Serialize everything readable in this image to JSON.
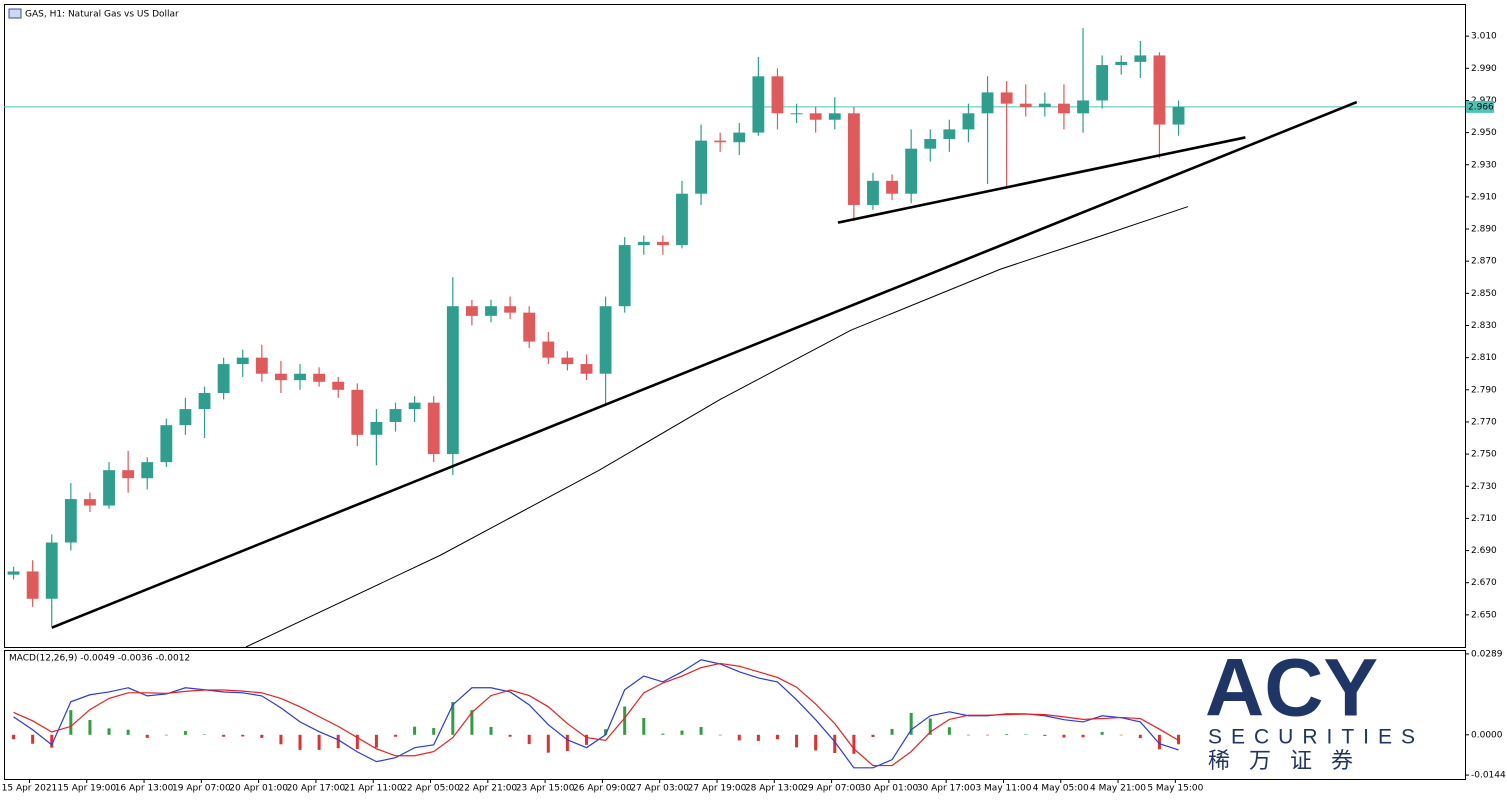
{
  "chart_data": {
    "type": "candlestick",
    "title": "GAS, H1: Natural Gas vs US Dollar",
    "up_color": "#2f9e8f",
    "down_color": "#e0595b",
    "x": [
      3,
      9,
      15,
      21,
      27,
      33,
      39,
      45,
      51,
      57,
      63,
      69,
      75,
      81,
      87,
      93,
      99,
      105,
      111,
      117,
      123,
      129,
      135,
      141,
      147,
      153,
      159,
      165,
      171,
      177,
      183,
      189,
      195,
      201,
      207,
      213,
      219,
      225,
      231,
      237,
      243,
      249,
      255,
      261,
      267,
      273,
      279,
      285,
      291,
      297,
      303,
      309,
      315,
      321,
      327,
      333,
      339,
      345,
      351,
      357,
      363,
      369
    ],
    "open": [
      2.675,
      2.677,
      2.66,
      2.695,
      2.722,
      2.718,
      2.74,
      2.735,
      2.745,
      2.768,
      2.778,
      2.788,
      2.806,
      2.81,
      2.8,
      2.796,
      2.8,
      2.795,
      2.79,
      2.762,
      2.77,
      2.778,
      2.782,
      2.75,
      2.842,
      2.836,
      2.842,
      2.838,
      2.82,
      2.81,
      2.806,
      2.8,
      2.842,
      2.88,
      2.882,
      2.88,
      2.912,
      2.945,
      2.944,
      2.95,
      2.985,
      2.962,
      2.962,
      2.958,
      2.962,
      2.905,
      2.92,
      2.912,
      2.94,
      2.946,
      2.952,
      2.962,
      2.975,
      2.968,
      2.966,
      2.968,
      2.962,
      2.97,
      2.992,
      2.994,
      2.998,
      2.955
    ],
    "high": [
      2.68,
      2.684,
      2.7,
      2.732,
      2.726,
      2.745,
      2.752,
      2.748,
      2.772,
      2.785,
      2.792,
      2.81,
      2.815,
      2.818,
      2.808,
      2.806,
      2.804,
      2.798,
      2.794,
      2.778,
      2.782,
      2.786,
      2.786,
      2.86,
      2.846,
      2.846,
      2.848,
      2.842,
      2.826,
      2.814,
      2.812,
      2.848,
      2.885,
      2.886,
      2.886,
      2.92,
      2.955,
      2.95,
      2.956,
      2.997,
      2.99,
      2.968,
      2.966,
      2.972,
      2.966,
      2.925,
      2.924,
      2.952,
      2.952,
      2.958,
      2.968,
      2.985,
      2.982,
      2.98,
      2.975,
      2.98,
      3.015,
      2.998,
      2.998,
      3.007,
      3.0,
      2.97
    ],
    "low": [
      2.672,
      2.655,
      2.643,
      2.69,
      2.714,
      2.716,
      2.726,
      2.728,
      2.742,
      2.762,
      2.76,
      2.784,
      2.798,
      2.795,
      2.788,
      2.79,
      2.792,
      2.785,
      2.755,
      2.743,
      2.764,
      2.77,
      2.745,
      2.737,
      2.83,
      2.832,
      2.834,
      2.816,
      2.806,
      2.802,
      2.796,
      2.78,
      2.838,
      2.874,
      2.874,
      2.878,
      2.905,
      2.938,
      2.936,
      2.948,
      2.952,
      2.956,
      2.95,
      2.952,
      2.895,
      2.902,
      2.908,
      2.906,
      2.932,
      2.938,
      2.944,
      2.918,
      2.915,
      2.96,
      2.96,
      2.952,
      2.95,
      2.965,
      2.986,
      2.984,
      2.934,
      2.948
    ],
    "close": [
      2.677,
      2.66,
      2.695,
      2.722,
      2.718,
      2.74,
      2.735,
      2.745,
      2.768,
      2.778,
      2.788,
      2.806,
      2.81,
      2.8,
      2.796,
      2.8,
      2.795,
      2.79,
      2.762,
      2.77,
      2.778,
      2.782,
      2.75,
      2.842,
      2.836,
      2.842,
      2.838,
      2.82,
      2.81,
      2.806,
      2.8,
      2.842,
      2.88,
      2.882,
      2.88,
      2.912,
      2.945,
      2.944,
      2.95,
      2.985,
      2.962,
      2.962,
      2.958,
      2.962,
      2.905,
      2.92,
      2.912,
      2.94,
      2.946,
      2.952,
      2.962,
      2.975,
      2.968,
      2.966,
      2.968,
      2.962,
      2.97,
      2.992,
      2.994,
      2.998,
      2.955,
      2.966
    ],
    "xlim": [
      0,
      459
    ],
    "xticks": [
      {
        "value": 8,
        "label": "15 Apr 2021"
      },
      {
        "value": 26,
        "label": "15 Apr 19:00"
      },
      {
        "value": 44,
        "label": "16 Apr 13:00"
      },
      {
        "value": 62,
        "label": "19 Apr 07:00"
      },
      {
        "value": 80,
        "label": "20 Apr 01:00"
      },
      {
        "value": 98,
        "label": "20 Apr 17:00"
      },
      {
        "value": 116,
        "label": "21 Apr 11:00"
      },
      {
        "value": 134,
        "label": "22 Apr 05:00"
      },
      {
        "value": 152,
        "label": "22 Apr 21:00"
      },
      {
        "value": 170,
        "label": "23 Apr 15:00"
      },
      {
        "value": 188,
        "label": "26 Apr 09:00"
      },
      {
        "value": 206,
        "label": "27 Apr 03:00"
      },
      {
        "value": 224,
        "label": "27 Apr 19:00"
      },
      {
        "value": 242,
        "label": "28 Apr 13:00"
      },
      {
        "value": 260,
        "label": "29 Apr 07:00"
      },
      {
        "value": 278,
        "label": "30 Apr 01:00"
      },
      {
        "value": 296,
        "label": "30 Apr 17:00"
      },
      {
        "value": 314,
        "label": "3 May 11:00"
      },
      {
        "value": 332,
        "label": "4 May 05:00"
      },
      {
        "value": 350,
        "label": "4 May 21:00"
      },
      {
        "value": 368,
        "label": "5 May 15:00"
      }
    ],
    "ylim": [
      2.63,
      3.03
    ],
    "yticks": [
      {
        "value": 2.65,
        "label": "2.650"
      },
      {
        "value": 2.67,
        "label": "2.670"
      },
      {
        "value": 2.69,
        "label": "2.690"
      },
      {
        "value": 2.71,
        "label": "2.710"
      },
      {
        "value": 2.73,
        "label": "2.730"
      },
      {
        "value": 2.75,
        "label": "2.750"
      },
      {
        "value": 2.77,
        "label": "2.770"
      },
      {
        "value": 2.79,
        "label": "2.790"
      },
      {
        "value": 2.81,
        "label": "2.810"
      },
      {
        "value": 2.83,
        "label": "2.830"
      },
      {
        "value": 2.85,
        "label": "2.850"
      },
      {
        "value": 2.87,
        "label": "2.870"
      },
      {
        "value": 2.89,
        "label": "2.890"
      },
      {
        "value": 2.91,
        "label": "2.910"
      },
      {
        "value": 2.93,
        "label": "2.930"
      },
      {
        "value": 2.95,
        "label": "2.950"
      },
      {
        "value": 2.97,
        "label": "2.970"
      },
      {
        "value": 2.99,
        "label": "2.990"
      },
      {
        "value": 3.01,
        "label": "3.010"
      }
    ],
    "ma": {
      "color": "#000000",
      "x": [
        76,
        137,
        187,
        225,
        266,
        313,
        345,
        372
      ],
      "values": [
        2.63,
        2.687,
        2.74,
        2.784,
        2.827,
        2.865,
        2.886,
        2.904
      ]
    },
    "trendlines": [
      {
        "color": "#000000",
        "x": [
          15,
          425
        ],
        "values": [
          2.642,
          2.969
        ]
      },
      {
        "color": "#000000",
        "x": [
          262,
          390
        ],
        "values": [
          2.894,
          2.947
        ]
      }
    ],
    "price_line": {
      "value": 2.966,
      "label": "2.966",
      "color": "#4fc3b5"
    },
    "macd": {
      "title": "MACD(12,26,9) -0.0049 -0.0036 -0.0012",
      "ylim": [
        -0.0158,
        0.0303
      ],
      "yticks": [
        0.0289,
        {
          "value": 0,
          "label": "0.0000"
        },
        -0.0144
      ],
      "histogram": {
        "up_color": "#2e9e3e",
        "down_color": "#e03030",
        "values": [
          -0.0016,
          -0.0032,
          -0.0046,
          0.0088,
          0.0053,
          0.0023,
          0.0018,
          -0.0011,
          -0.0002,
          0.0013,
          0.0001,
          -0.0007,
          -0.0006,
          -0.0011,
          -0.0034,
          -0.0054,
          -0.0054,
          -0.0048,
          -0.0051,
          -0.0046,
          -0.0007,
          0.0029,
          0.0024,
          0.0117,
          0.0088,
          0.0028,
          -0.0007,
          -0.0033,
          -0.0064,
          -0.0058,
          -0.0036,
          0.002,
          0.0101,
          0.006,
          0.0004,
          0.0015,
          0.0028,
          -0.0002,
          -0.002,
          -0.0022,
          -0.0016,
          -0.0045,
          -0.0056,
          -0.0065,
          -0.0068,
          -0.0008,
          0.0021,
          0.0078,
          0.0058,
          0.0027,
          -0.0002,
          -0.0002,
          0.0003,
          0.0001,
          -0.0004,
          -0.001,
          -0.0009,
          0.001,
          -0.0001,
          -0.0012,
          -0.0052,
          -0.0034
        ]
      },
      "series": [
        {
          "color": "#2a3bd8",
          "values": [
            0.0064,
            0.0018,
            -0.0036,
            0.0118,
            0.0143,
            0.0153,
            0.0168,
            0.0139,
            0.0146,
            0.0168,
            0.0161,
            0.0153,
            0.015,
            0.0139,
            0.0096,
            0.0046,
            0.0011,
            -0.0018,
            -0.0061,
            -0.0096,
            -0.0082,
            -0.0046,
            -0.0036,
            0.0107,
            0.0168,
            0.0168,
            0.0153,
            0.0107,
            0.0036,
            -0.0018,
            -0.0046,
            0,
            0.0161,
            0.021,
            0.0189,
            0.0225,
            0.0268,
            0.0253,
            0.0225,
            0.0203,
            0.0189,
            0.0125,
            0.0054,
            -0.0025,
            -0.0118,
            -0.0118,
            -0.0089,
            0.0018,
            0.0068,
            0.0082,
            0.0068,
            0.0068,
            0.0075,
            0.0075,
            0.0068,
            0.0054,
            0.0046,
            0.0068,
            0.0061,
            0.0046,
            -0.0032,
            -0.0054
          ]
        },
        {
          "color": "#e82020",
          "values": [
            0.008,
            0.005,
            0.001,
            0.003,
            0.009,
            0.013,
            0.015,
            0.015,
            0.0148,
            0.0155,
            0.016,
            0.016,
            0.0156,
            0.015,
            0.013,
            0.01,
            0.0065,
            0.003,
            -0.001,
            -0.005,
            -0.0075,
            -0.0075,
            -0.006,
            -0.001,
            0.008,
            0.014,
            0.016,
            0.014,
            0.01,
            0.004,
            -0.001,
            -0.002,
            0.006,
            0.015,
            0.0185,
            0.021,
            0.024,
            0.0255,
            0.0245,
            0.0225,
            0.0205,
            0.017,
            0.011,
            0.004,
            -0.005,
            -0.011,
            -0.011,
            -0.006,
            0.001,
            0.0055,
            0.007,
            0.007,
            0.0072,
            0.0074,
            0.0072,
            0.0064,
            0.0055,
            0.0058,
            0.0062,
            0.0058,
            0.002,
            -0.002
          ]
        }
      ]
    }
  },
  "logo": {
    "mark": "ACY",
    "name": "SECURITIES",
    "chinese": "稀 万 证 券"
  }
}
